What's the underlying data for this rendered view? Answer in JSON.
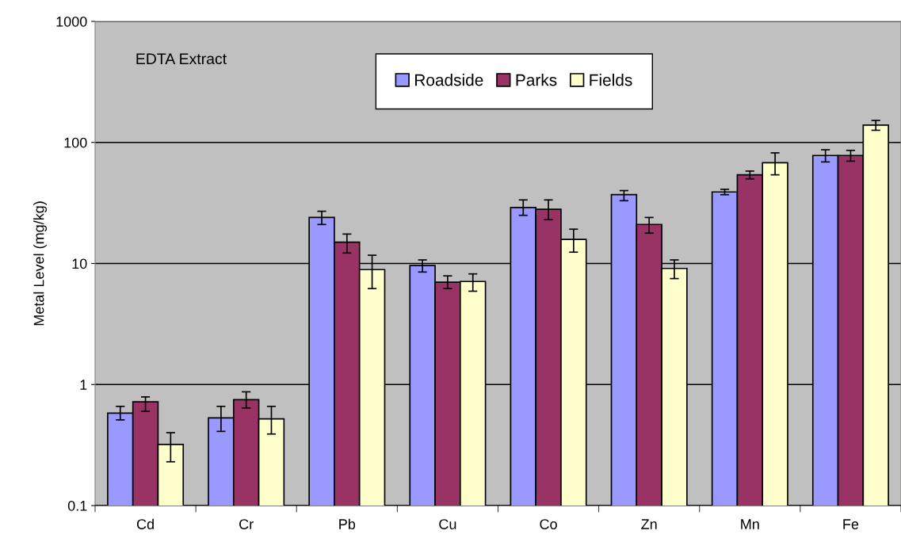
{
  "chart_data": {
    "type": "bar",
    "ylabel": "Metal Level (mg/kg)",
    "annotations": [
      "EDTA Extract"
    ],
    "categories": [
      "Cd",
      "Cr",
      "Pb",
      "Cu",
      "Co",
      "Zn",
      "Mn",
      "Fe"
    ],
    "series": [
      {
        "name": "Roadside",
        "color": "#9999ff",
        "values": [
          0.58,
          0.53,
          24,
          9.6,
          29,
          37,
          39,
          78
        ],
        "errors": [
          [
            0.51,
            0.66
          ],
          [
            0.41,
            0.66
          ],
          [
            21,
            27
          ],
          [
            8.5,
            10.7
          ],
          [
            25,
            33.5
          ],
          [
            33,
            40
          ],
          [
            37,
            41
          ],
          [
            69,
            87
          ]
        ]
      },
      {
        "name": "Parks",
        "color": "#993366",
        "values": [
          0.72,
          0.75,
          15,
          7.0,
          28,
          21,
          54,
          78
        ],
        "errors": [
          [
            0.6,
            0.79
          ],
          [
            0.64,
            0.87
          ],
          [
            12.2,
            17.5
          ],
          [
            6.2,
            7.9
          ],
          [
            23,
            33.5
          ],
          [
            17.8,
            24
          ],
          [
            50,
            58
          ],
          [
            70,
            86
          ]
        ]
      },
      {
        "name": "Fields",
        "color": "#ffffcc",
        "values": [
          0.32,
          0.52,
          8.9,
          7.1,
          15.8,
          9.1,
          68,
          139
        ],
        "errors": [
          [
            0.23,
            0.4
          ],
          [
            0.39,
            0.66
          ],
          [
            6.2,
            11.7
          ],
          [
            5.9,
            8.2
          ],
          [
            12.4,
            19.2
          ],
          [
            7.5,
            10.7
          ],
          [
            54,
            82
          ],
          [
            126,
            152
          ]
        ]
      }
    ],
    "log": true,
    "ylim": [
      0.1,
      1000
    ],
    "yticks": [
      0.1,
      1,
      10,
      100,
      1000
    ],
    "grid": "y",
    "legend": "top"
  }
}
